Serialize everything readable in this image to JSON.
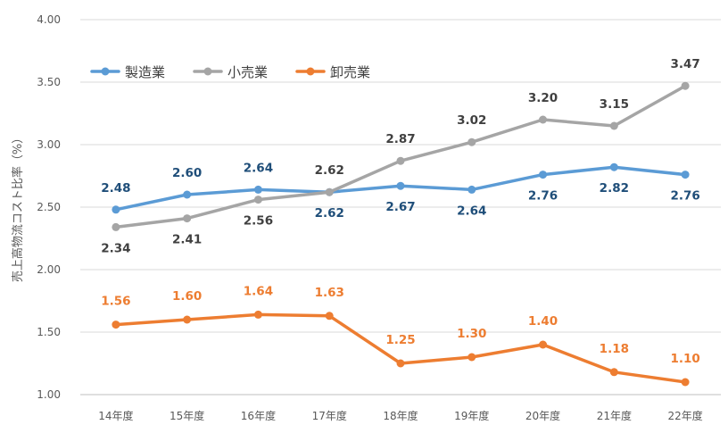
{
  "chart_data": {
    "type": "line",
    "title": "",
    "xlabel": "",
    "ylabel": "売上高物流コスト比率（%）",
    "categories": [
      "14年度",
      "15年度",
      "16年度",
      "17年度",
      "18年度",
      "19年度",
      "20年度",
      "21年度",
      "22年度"
    ],
    "ylim": [
      1.0,
      4.0
    ],
    "yticks": [
      "1.00",
      "1.50",
      "2.00",
      "2.50",
      "3.00",
      "3.50",
      "4.00"
    ],
    "grid": true,
    "legend": "top-left",
    "series": [
      {
        "name": "製造業",
        "color": "#5b9bd5",
        "label_color": "#1f4e79",
        "values": [
          2.48,
          2.6,
          2.64,
          2.62,
          2.67,
          2.64,
          2.76,
          2.82,
          2.76
        ],
        "labels": [
          "2.48",
          "2.60",
          "2.64",
          "2.62",
          "2.67",
          "2.64",
          "2.76",
          "2.82",
          "2.76"
        ]
      },
      {
        "name": "小売業",
        "color": "#a5a5a5",
        "label_color": "#404040",
        "values": [
          2.34,
          2.41,
          2.56,
          2.62,
          2.87,
          3.02,
          3.2,
          3.15,
          3.47
        ],
        "labels": [
          "2.34",
          "2.41",
          "2.56",
          "2.62",
          "2.87",
          "3.02",
          "3.20",
          "3.15",
          "3.47"
        ]
      },
      {
        "name": "卸売業",
        "color": "#ed7d31",
        "label_color": "#ed7d31",
        "values": [
          1.56,
          1.6,
          1.64,
          1.63,
          1.25,
          1.3,
          1.4,
          1.18,
          1.1
        ],
        "labels": [
          "1.56",
          "1.60",
          "1.64",
          "1.63",
          "1.25",
          "1.30",
          "1.40",
          "1.18",
          "1.10"
        ]
      }
    ]
  }
}
